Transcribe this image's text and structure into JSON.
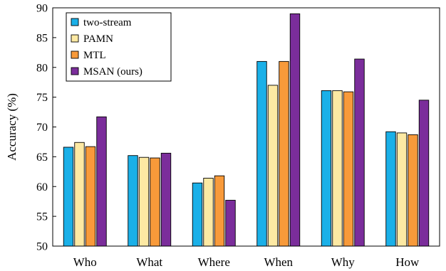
{
  "chart_data": {
    "type": "bar",
    "title": "",
    "xlabel": "",
    "ylabel": "Accuracy (%)",
    "ylim": [
      50,
      90
    ],
    "yticks": [
      50,
      55,
      60,
      65,
      70,
      75,
      80,
      85,
      90
    ],
    "grid": false,
    "legend": "top-left",
    "categories": [
      "Who",
      "What",
      "Where",
      "When",
      "Why",
      "How"
    ],
    "series": [
      {
        "name": "two-stream",
        "color": "#1ab0e8",
        "values": [
          66.6,
          65.2,
          60.6,
          81.0,
          76.1,
          69.2
        ]
      },
      {
        "name": "PAMN",
        "color": "#fde9a3",
        "values": [
          67.4,
          64.9,
          61.4,
          77.0,
          76.1,
          69.0
        ]
      },
      {
        "name": "MTL",
        "color": "#f89a3a",
        "values": [
          66.7,
          64.8,
          61.8,
          81.0,
          75.9,
          68.7
        ]
      },
      {
        "name": "MSAN (ours)",
        "color": "#7b2d9b",
        "values": [
          71.7,
          65.6,
          57.7,
          89.0,
          81.4,
          74.5
        ]
      }
    ]
  }
}
